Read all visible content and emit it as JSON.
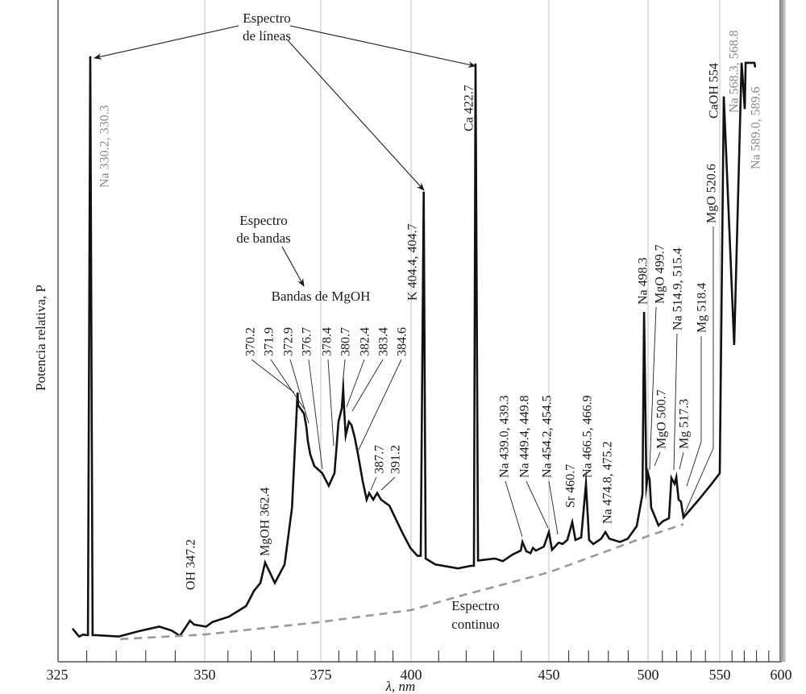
{
  "chart_data": {
    "type": "line",
    "title": "",
    "xlabel": "λ, nm",
    "ylabel": "Potencia relativa, P",
    "xlim": [
      325,
      600
    ],
    "x_scale": "nonuniform (compressed toward longer wavelengths)",
    "x_ticks": [
      325,
      350,
      375,
      400,
      450,
      500,
      550,
      600
    ],
    "x_tick_labels": [
      "325",
      "350",
      "375",
      "400",
      "450",
      "500",
      "550",
      "600"
    ],
    "minor_ticks": {
      "step_below_400": 5,
      "step_above_400": 10
    },
    "grid": "vertical lines at major ticks",
    "y_units": "relative (no scale printed; 0 = axis, 100 = top of plot)",
    "colors": {
      "spectrum": "#111111",
      "continuum": "#999999",
      "grid": "#cfcfcf",
      "gray_labels": "#8a8a8a"
    },
    "series": [
      {
        "style": "solid",
        "points": [
          [
            327.6,
            4.9
          ],
          [
            328.7,
            3.7
          ],
          [
            329.4,
            4.0
          ],
          [
            329.9,
            3.9
          ],
          [
            330.2,
            3.9
          ],
          [
            330.6,
            91.5
          ],
          [
            331.0,
            3.9
          ],
          [
            331.6,
            3.9
          ],
          [
            335.4,
            3.7
          ],
          [
            338.8,
            4.5
          ],
          [
            342.3,
            5.2
          ],
          [
            344.4,
            4.6
          ],
          [
            345.8,
            3.8
          ],
          [
            347.5,
            6.1
          ],
          [
            348.2,
            5.5
          ],
          [
            350.3,
            5.2
          ],
          [
            351.7,
            5.9
          ],
          [
            355.2,
            6.7
          ],
          [
            358.9,
            8.3
          ],
          [
            360.6,
            10.6
          ],
          [
            362.0,
            11.8
          ],
          [
            363.0,
            14.9
          ],
          [
            365.1,
            11.8
          ],
          [
            367.2,
            14.6
          ],
          [
            368.8,
            23.2
          ],
          [
            370.0,
            40.6
          ],
          [
            370.1,
            38.7
          ],
          [
            371.4,
            37.4
          ],
          [
            371.9,
            35.4
          ],
          [
            372.2,
            33.3
          ],
          [
            372.7,
            31.3
          ],
          [
            373.6,
            29.5
          ],
          [
            375.4,
            28.4
          ],
          [
            377.2,
            26.5
          ],
          [
            378.8,
            28.4
          ],
          [
            379.9,
            36.2
          ],
          [
            380.8,
            38.2
          ],
          [
            381.2,
            41.2
          ],
          [
            381.5,
            37.8
          ],
          [
            381.9,
            34.1
          ],
          [
            382.8,
            36.2
          ],
          [
            383.5,
            35.7
          ],
          [
            384.4,
            33.8
          ],
          [
            385.3,
            31.3
          ],
          [
            386.6,
            27.2
          ],
          [
            387.7,
            24.4
          ],
          [
            388.4,
            25.4
          ],
          [
            389.5,
            24.4
          ],
          [
            390.6,
            25.4
          ],
          [
            391.7,
            24.4
          ],
          [
            394.0,
            23.5
          ],
          [
            397.5,
            19.5
          ],
          [
            399.8,
            17.1
          ],
          [
            402.3,
            15.9
          ],
          [
            403.5,
            15.9
          ],
          [
            404.6,
            71.0
          ],
          [
            405.3,
            15.5
          ],
          [
            408.8,
            14.6
          ],
          [
            417.0,
            14.0
          ],
          [
            421.9,
            14.4
          ],
          [
            422.8,
            14.4
          ],
          [
            423.4,
            90.4
          ],
          [
            424.3,
            15.2
          ],
          [
            430.4,
            15.5
          ],
          [
            433.3,
            15.1
          ],
          [
            436.8,
            16.1
          ],
          [
            439.8,
            16.7
          ],
          [
            440.4,
            18.0
          ],
          [
            441.8,
            16.6
          ],
          [
            443.3,
            16.3
          ],
          [
            444.2,
            17.1
          ],
          [
            445.3,
            16.7
          ],
          [
            448.2,
            17.3
          ],
          [
            450.0,
            19.5
          ],
          [
            451.6,
            16.8
          ],
          [
            454.9,
            17.9
          ],
          [
            456.9,
            17.7
          ],
          [
            459.3,
            18.3
          ],
          [
            461.8,
            21.0
          ],
          [
            463.4,
            18.3
          ],
          [
            466.3,
            18.7
          ],
          [
            468.7,
            26.8
          ],
          [
            470.3,
            18.3
          ],
          [
            472.4,
            17.7
          ],
          [
            476.4,
            18.5
          ],
          [
            478.5,
            19.5
          ],
          [
            480.5,
            18.5
          ],
          [
            485.8,
            18.0
          ],
          [
            489.8,
            18.5
          ],
          [
            494.3,
            20.4
          ],
          [
            497.2,
            25.2
          ],
          [
            498.0,
            52.8
          ],
          [
            499.2,
            26.5
          ],
          [
            500.0,
            28.4
          ],
          [
            501.1,
            27.4
          ],
          [
            502.2,
            23.2
          ],
          [
            507.3,
            20.5
          ],
          [
            510.1,
            21.1
          ],
          [
            514.6,
            21.6
          ],
          [
            516.3,
            27.7
          ],
          [
            518.5,
            26.8
          ],
          [
            519.7,
            27.8
          ],
          [
            521.3,
            24.4
          ],
          [
            523.0,
            24.1
          ],
          [
            524.7,
            21.7
          ],
          [
            535.4,
            24.4
          ],
          [
            544.4,
            26.8
          ],
          [
            550.0,
            28.4
          ],
          [
            553.3,
            85.4
          ],
          [
            561.8,
            47.8
          ],
          [
            567.8,
            90.5
          ],
          [
            570.4,
            83.5
          ],
          [
            571.1,
            90.5
          ],
          [
            578.3,
            90.5
          ],
          [
            578.9,
            89.8
          ]
        ]
      },
      {
        "style": "dashed",
        "points": [
          [
            335.7,
            3.3
          ],
          [
            350.0,
            4.0
          ],
          [
            375.0,
            5.9
          ],
          [
            400.0,
            7.7
          ],
          [
            417.5,
            9.8
          ],
          [
            450.0,
            13.4
          ],
          [
            500.0,
            18.9
          ],
          [
            524.7,
            20.7
          ]
        ]
      }
    ],
    "peak_labels": [
      {
        "text": "Na 330.2, 330.3",
        "tone": "gray"
      },
      {
        "text": "Ca 422.7",
        "tone": "black"
      },
      {
        "text": "K 404.4, 404.7",
        "tone": "black"
      },
      {
        "text": "OH 347.2",
        "tone": "black"
      },
      {
        "text": "MgOH 362.4",
        "tone": "black"
      },
      {
        "text": "370.2",
        "tone": "black"
      },
      {
        "text": "371.9",
        "tone": "black"
      },
      {
        "text": "372.9",
        "tone": "black"
      },
      {
        "text": "376.7",
        "tone": "black"
      },
      {
        "text": "378.4",
        "tone": "black"
      },
      {
        "text": "380.7",
        "tone": "black"
      },
      {
        "text": "382.4",
        "tone": "black"
      },
      {
        "text": "383.4",
        "tone": "black"
      },
      {
        "text": "384.6",
        "tone": "black"
      },
      {
        "text": "387.7",
        "tone": "black"
      },
      {
        "text": "391.2",
        "tone": "black"
      },
      {
        "text": "Na 439.0, 439.3",
        "tone": "black"
      },
      {
        "text": "Na 449.4, 449.8",
        "tone": "black"
      },
      {
        "text": "Na 454.2, 454.5",
        "tone": "black"
      },
      {
        "text": "Sr 460.7",
        "tone": "black"
      },
      {
        "text": "Na 466.5, 466.9",
        "tone": "black"
      },
      {
        "text": "Na 474.8, 475.2",
        "tone": "black"
      },
      {
        "text": "Na 498.3",
        "tone": "black"
      },
      {
        "text": "MgO 499.7",
        "tone": "black"
      },
      {
        "text": "MgO 500.7",
        "tone": "black"
      },
      {
        "text": "Na 514.9, 515.4",
        "tone": "black"
      },
      {
        "text": "Mg 517.3",
        "tone": "black"
      },
      {
        "text": "Mg 518.4",
        "tone": "black"
      },
      {
        "text": "MgO 520.6",
        "tone": "black"
      },
      {
        "text": "CaOH 554",
        "tone": "black"
      },
      {
        "text": "Na 568.3, 568.8",
        "tone": "gray"
      },
      {
        "text": "Na 589.0, 589.6",
        "tone": "gray"
      }
    ],
    "annotations": {
      "line_spectrum": [
        "Espectro",
        "de líneas"
      ],
      "band_spectrum": [
        "Espectro",
        "de bandas"
      ],
      "mgoh_bands": "Bandas de MgOH",
      "continuum": [
        "Espectro",
        "continuo"
      ]
    }
  }
}
